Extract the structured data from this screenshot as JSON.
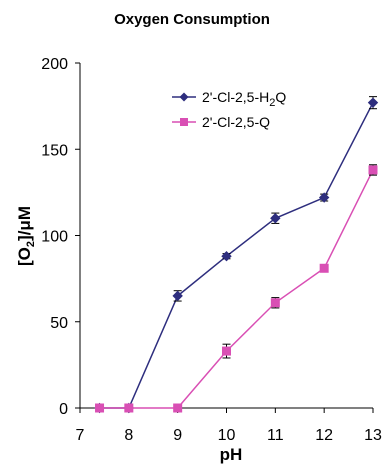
{
  "chart_data": {
    "type": "line",
    "title": "Oxygen Consumption",
    "xlabel": "pH",
    "ylabel": "[O2]/μM",
    "ylabel_parts": {
      "prefix": "[O",
      "sub": "2",
      "suffix": "]/μM"
    },
    "xlim": [
      7,
      13
    ],
    "ylim": [
      0,
      200
    ],
    "xticks": [
      "7",
      "8",
      "9",
      "10",
      "11",
      "12",
      "13"
    ],
    "yticks": [
      "0",
      "50",
      "100",
      "150",
      "200"
    ],
    "grid": false,
    "legend_position": "top-right",
    "series": [
      {
        "name": "2'-Cl-2,5-H2Q",
        "name_parts": {
          "prefix": "2'-Cl-2,5-H",
          "sub": "2",
          "suffix": "Q"
        },
        "color": "#2e2e7e",
        "marker": "diamond",
        "x": [
          7.4,
          8,
          9,
          10,
          11,
          12,
          13
        ],
        "y": [
          0,
          0,
          65,
          88,
          110,
          122,
          177
        ],
        "err": [
          0,
          0,
          3,
          1.5,
          3,
          2,
          3.5
        ]
      },
      {
        "name": "2'-Cl-2,5-Q",
        "color": "#d94fb4",
        "marker": "square",
        "x": [
          7.4,
          8,
          9,
          10,
          11,
          12,
          13
        ],
        "y": [
          0,
          0,
          0,
          33,
          61,
          81,
          138
        ],
        "err": [
          0,
          0,
          0,
          4,
          3,
          0,
          3
        ]
      }
    ]
  }
}
